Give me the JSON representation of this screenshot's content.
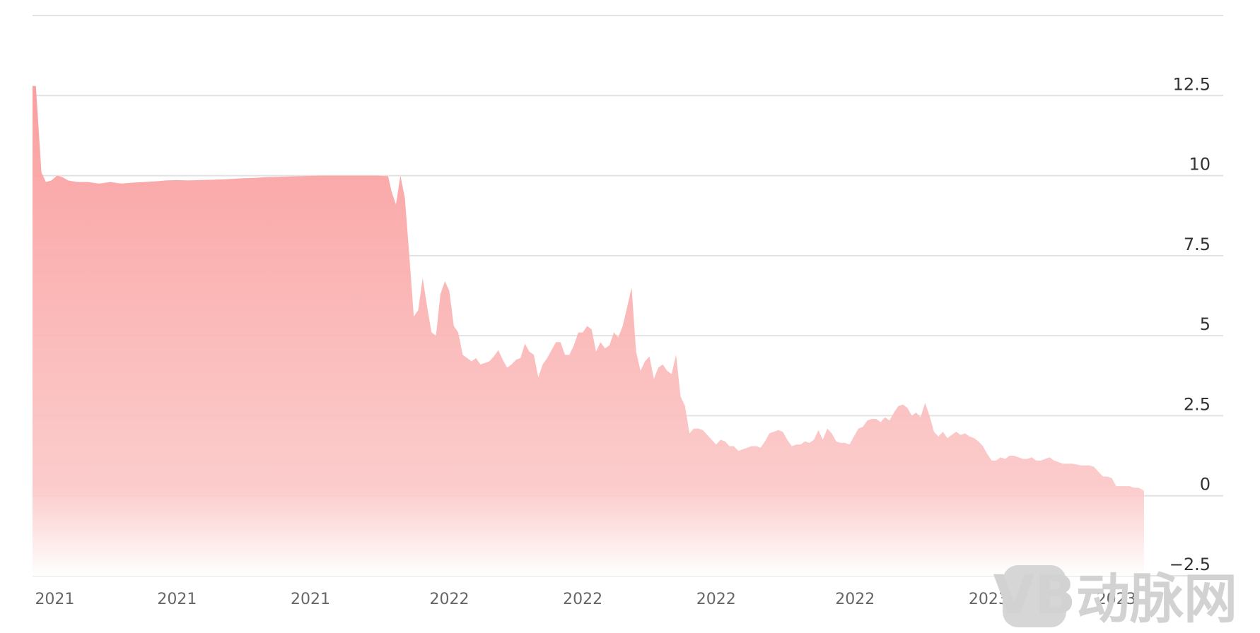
{
  "chart_data": {
    "type": "area",
    "title": "",
    "xlabel": "",
    "ylabel": "",
    "ylim": [
      -2.5,
      15
    ],
    "y_ticks": [
      "12.5",
      "10",
      "7.5",
      "5",
      "2.5",
      "0",
      "−2.5"
    ],
    "y_tick_values": [
      12.5,
      10,
      7.5,
      5,
      2.5,
      0,
      -2.5
    ],
    "x_tick_labels": [
      "2021",
      "2021",
      "2021",
      "2022",
      "2022",
      "2022",
      "2022",
      "2023",
      "2023"
    ],
    "x_tick_positions": [
      0.02,
      0.13,
      0.25,
      0.375,
      0.495,
      0.615,
      0.74,
      0.86,
      0.975
    ],
    "grid": true,
    "legend": "none",
    "series": [
      {
        "color": "#fa9a9a",
        "x": [
          0,
          0.003,
          0.008,
          0.012,
          0.017,
          0.022,
          0.027,
          0.032,
          0.04,
          0.05,
          0.06,
          0.07,
          0.08,
          0.09,
          0.1,
          0.11,
          0.12,
          0.13,
          0.14,
          0.15,
          0.16,
          0.17,
          0.18,
          0.19,
          0.2,
          0.21,
          0.22,
          0.23,
          0.24,
          0.25,
          0.26,
          0.27,
          0.28,
          0.29,
          0.3,
          0.31,
          0.32,
          0.323,
          0.327,
          0.331,
          0.335,
          0.339,
          0.343,
          0.347,
          0.351,
          0.355,
          0.359,
          0.363,
          0.367,
          0.371,
          0.375,
          0.379,
          0.383,
          0.387,
          0.391,
          0.395,
          0.399,
          0.403,
          0.407,
          0.411,
          0.415,
          0.419,
          0.423,
          0.427,
          0.431,
          0.435,
          0.439,
          0.443,
          0.447,
          0.451,
          0.455,
          0.459,
          0.463,
          0.467,
          0.471,
          0.475,
          0.479,
          0.483,
          0.487,
          0.491,
          0.495,
          0.499,
          0.503,
          0.507,
          0.511,
          0.515,
          0.519,
          0.523,
          0.527,
          0.531,
          0.535,
          0.539,
          0.543,
          0.547,
          0.551,
          0.555,
          0.559,
          0.563,
          0.567,
          0.571,
          0.575,
          0.579,
          0.583,
          0.587,
          0.591,
          0.595,
          0.599,
          0.603,
          0.607,
          0.611,
          0.615,
          0.619,
          0.623,
          0.627,
          0.631,
          0.635,
          0.639,
          0.643,
          0.647,
          0.651,
          0.655,
          0.659,
          0.663,
          0.667,
          0.671,
          0.675,
          0.679,
          0.683,
          0.687,
          0.691,
          0.695,
          0.699,
          0.703,
          0.707,
          0.711,
          0.715,
          0.719,
          0.723,
          0.727,
          0.731,
          0.735,
          0.739,
          0.743,
          0.747,
          0.751,
          0.755,
          0.759,
          0.763,
          0.767,
          0.771,
          0.775,
          0.779,
          0.783,
          0.787,
          0.791,
          0.795,
          0.799,
          0.803,
          0.807,
          0.811,
          0.815,
          0.819,
          0.823,
          0.827,
          0.831,
          0.835,
          0.839,
          0.843,
          0.847,
          0.851,
          0.855,
          0.859,
          0.863,
          0.867,
          0.871,
          0.875,
          0.879,
          0.883,
          0.887,
          0.891,
          0.895,
          0.899,
          0.903,
          0.907,
          0.911,
          0.915,
          0.919,
          0.923,
          0.927,
          0.931,
          0.935,
          0.939,
          0.943,
          0.947,
          0.951,
          0.955,
          0.959,
          0.963,
          0.967,
          0.971,
          0.975,
          0.979,
          0.983,
          0.987,
          0.991,
          0.995,
          0.998,
          1.0
        ],
        "values": [
          12.8,
          12.8,
          10.1,
          9.8,
          9.85,
          10.0,
          9.95,
          9.85,
          9.8,
          9.8,
          9.75,
          9.8,
          9.75,
          9.78,
          9.8,
          9.82,
          9.85,
          9.86,
          9.85,
          9.86,
          9.87,
          9.88,
          9.9,
          9.92,
          9.93,
          9.95,
          9.96,
          9.97,
          9.98,
          9.99,
          10.0,
          10.0,
          10.0,
          10.0,
          10.0,
          10.0,
          9.98,
          9.5,
          9.1,
          10.0,
          9.3,
          7.5,
          5.6,
          5.8,
          6.8,
          5.9,
          5.1,
          5.0,
          6.3,
          6.7,
          6.4,
          5.3,
          5.1,
          4.4,
          4.3,
          4.2,
          4.3,
          4.1,
          4.15,
          4.2,
          4.35,
          4.55,
          4.25,
          4.0,
          4.1,
          4.25,
          4.3,
          4.75,
          4.5,
          4.4,
          3.7,
          4.1,
          4.3,
          4.55,
          4.8,
          4.8,
          4.4,
          4.4,
          4.7,
          5.1,
          5.1,
          5.3,
          5.2,
          4.5,
          4.8,
          4.6,
          4.7,
          5.1,
          4.95,
          5.3,
          5.9,
          6.5,
          4.5,
          3.9,
          4.2,
          4.35,
          3.65,
          4.0,
          4.1,
          3.9,
          3.8,
          4.4,
          3.1,
          2.8,
          1.95,
          2.1,
          2.1,
          2.05,
          1.9,
          1.75,
          1.6,
          1.75,
          1.7,
          1.55,
          1.55,
          1.4,
          1.45,
          1.5,
          1.55,
          1.55,
          1.5,
          1.7,
          1.95,
          2.0,
          2.05,
          2.0,
          1.75,
          1.55,
          1.6,
          1.6,
          1.7,
          1.65,
          1.75,
          2.05,
          1.75,
          2.1,
          1.95,
          1.7,
          1.65,
          1.65,
          1.6,
          1.85,
          2.1,
          2.15,
          2.35,
          2.4,
          2.4,
          2.3,
          2.45,
          2.35,
          2.6,
          2.8,
          2.85,
          2.75,
          2.5,
          2.6,
          2.45,
          2.9,
          2.5,
          2.0,
          1.85,
          2.0,
          1.8,
          1.9,
          2.0,
          1.9,
          1.95,
          1.85,
          1.8,
          1.7,
          1.55,
          1.3,
          1.1,
          1.1,
          1.2,
          1.15,
          1.25,
          1.25,
          1.2,
          1.15,
          1.15,
          1.2,
          1.1,
          1.1,
          1.15,
          1.2,
          1.1,
          1.05,
          1.0,
          1.0,
          1.0,
          0.98,
          0.95,
          0.95,
          0.95,
          0.9,
          0.75,
          0.6,
          0.6,
          0.55,
          0.3,
          0.3,
          0.3,
          0.3,
          0.25,
          0.25,
          0.2,
          0.15
        ]
      }
    ]
  },
  "watermark": {
    "logo_text": "VB",
    "brand_text": "动脉网"
  }
}
